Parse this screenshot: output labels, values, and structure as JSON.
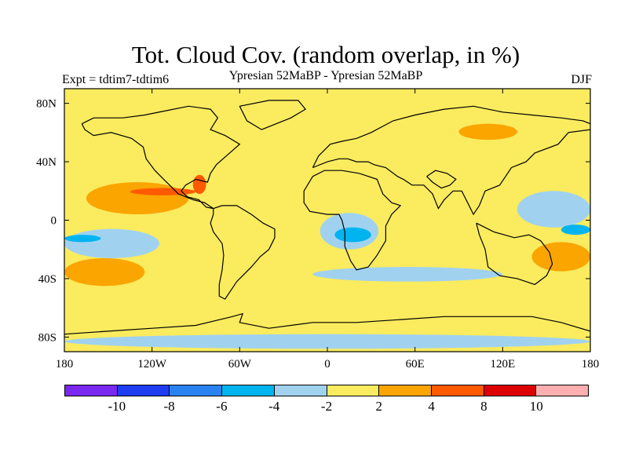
{
  "title": "Tot. Cloud Cov. (random overlap, in %)",
  "subtitle": "Ypresian  52MaBP - Ypresian  52MaBP",
  "experiment_label": "Expt = tdtim7-tdtim6",
  "season": "DJF",
  "background_color": "#FAEB5F",
  "chart_data": {
    "type": "heatmap",
    "projection": "cylindrical-equidistant",
    "x_ticks": [
      "180",
      "120W",
      "60W",
      "0",
      "60E",
      "120E",
      "180"
    ],
    "y_ticks": [
      "80N",
      "40N",
      "0",
      "40S",
      "80S"
    ],
    "xlim": [
      -180,
      180
    ],
    "ylim": [
      -90,
      90
    ],
    "colorbar": {
      "colors": [
        "#7A28F0",
        "#1E3CF0",
        "#2A82F0",
        "#00B4F0",
        "#A0D2F0",
        "#FAEB5F",
        "#FAA500",
        "#FF5A00",
        "#DC0000",
        "#FFAFAF"
      ],
      "labels": [
        "-10",
        "-8",
        "-6",
        "-4",
        "-2",
        "2",
        "4",
        "8",
        "10"
      ]
    },
    "anomalies": [
      {
        "region": "North Pacific subtropics",
        "level": "2 to 4",
        "lon": [
          -165,
          -95
        ],
        "lat": [
          4,
          26
        ]
      },
      {
        "region": "North Pacific subtropics core",
        "level": "4 to 8",
        "lon": [
          -135,
          -90
        ],
        "lat": [
          17,
          22
        ]
      },
      {
        "region": "Western North America coast",
        "level": "4 to 8",
        "lon": [
          -92,
          -83
        ],
        "lat": [
          18,
          31
        ]
      },
      {
        "region": "South Pacific",
        "level": "2 to 4",
        "lon": [
          -180,
          -125
        ],
        "lat": [
          -45,
          -26
        ]
      },
      {
        "region": "Eastern Pacific tropics",
        "level": "-4 to -2",
        "lon": [
          -180,
          -115
        ],
        "lat": [
          -26,
          -6
        ]
      },
      {
        "region": "Eastern Pacific core",
        "level": "-6 to -4",
        "lon": [
          -180,
          -155
        ],
        "lat": [
          -15,
          -10
        ]
      },
      {
        "region": "Central Africa",
        "level": "-4 to -2",
        "lon": [
          -5,
          35
        ],
        "lat": [
          -20,
          5
        ]
      },
      {
        "region": "Central Africa core",
        "level": "-6 to -4",
        "lon": [
          5,
          30
        ],
        "lat": [
          -15,
          -5
        ]
      },
      {
        "region": "Southern Ocean",
        "level": "-4 to -2",
        "lon": [
          -10,
          120
        ],
        "lat": [
          -42,
          -32
        ]
      },
      {
        "region": "Siberia",
        "level": "2 to 4",
        "lon": [
          90,
          130
        ],
        "lat": [
          55,
          66
        ]
      },
      {
        "region": "Western Pacific",
        "level": "-4 to -2",
        "lon": [
          130,
          180
        ],
        "lat": [
          -5,
          20
        ]
      },
      {
        "region": "Western Pacific core",
        "level": "-6 to -4",
        "lon": [
          160,
          180
        ],
        "lat": [
          -10,
          -3
        ]
      },
      {
        "region": "Southwest Pacific",
        "level": "2 to 4",
        "lon": [
          140,
          180
        ],
        "lat": [
          -35,
          -15
        ]
      },
      {
        "region": "Antarctic coast",
        "level": "-4 to -2",
        "lon": [
          -180,
          180
        ],
        "lat": [
          -88,
          -78
        ]
      }
    ]
  }
}
